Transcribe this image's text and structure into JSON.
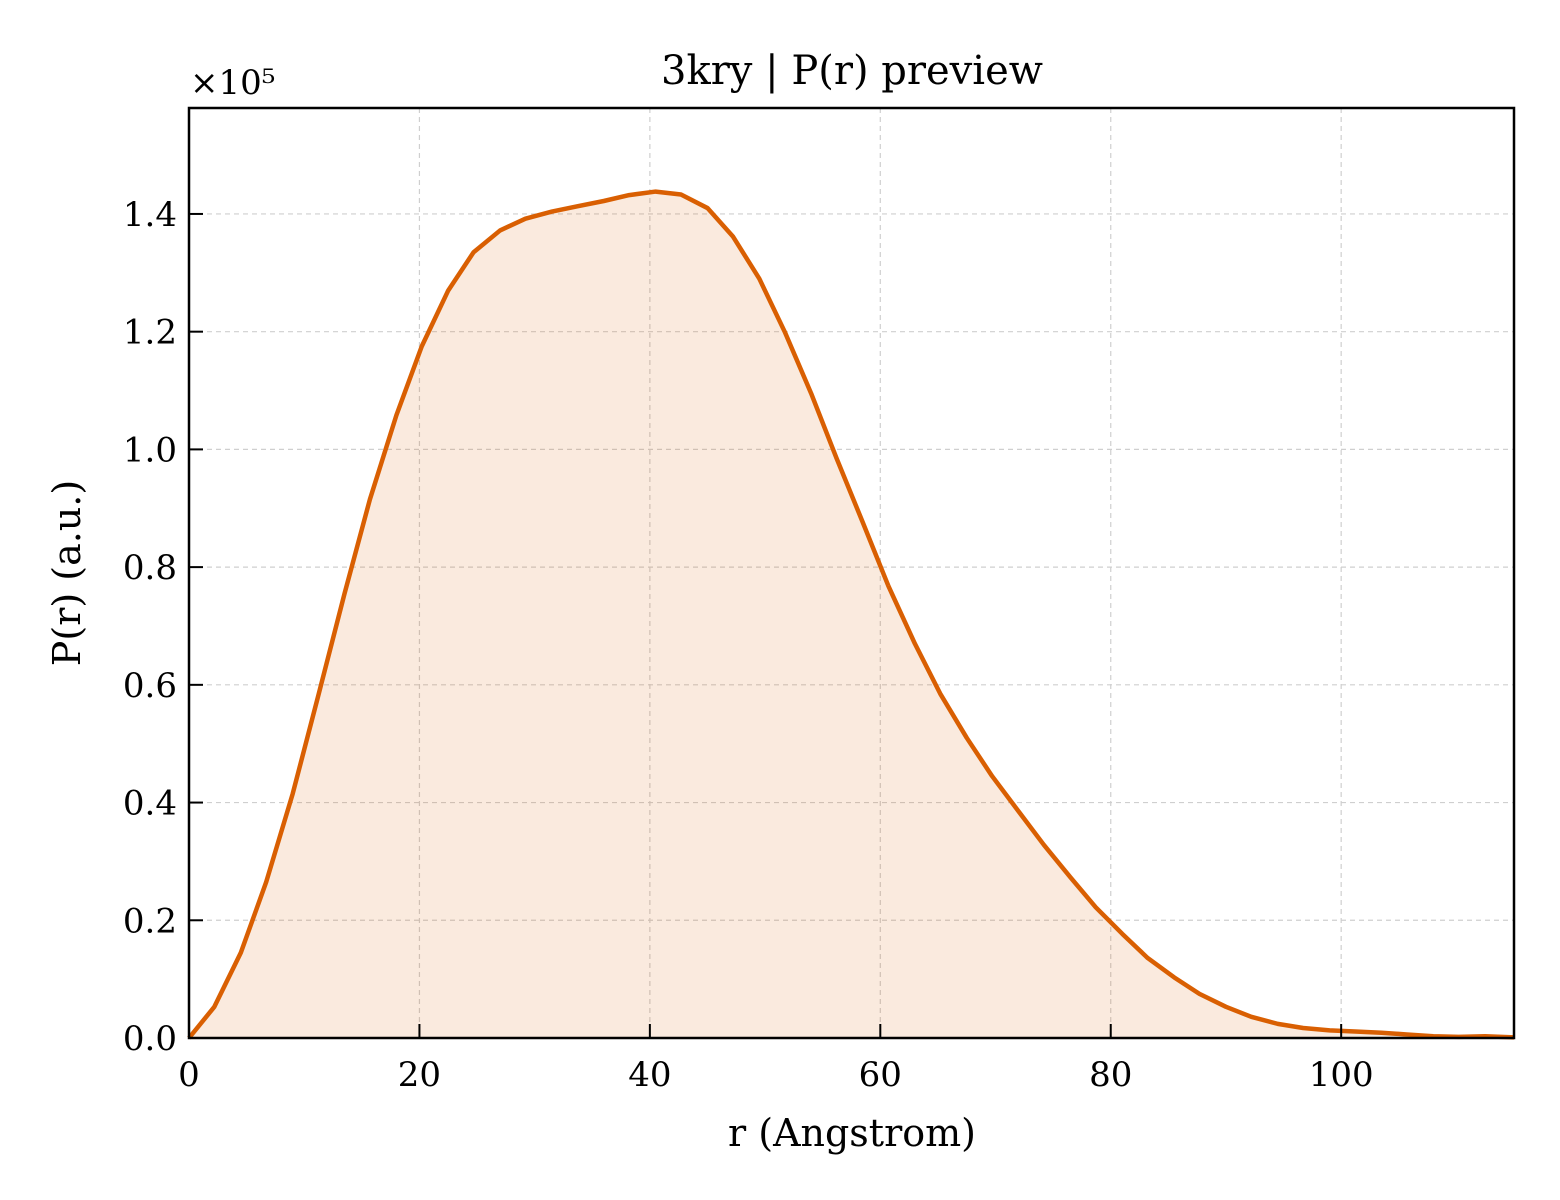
{
  "chart_data": {
    "type": "area",
    "title": "3kry | P(r) preview",
    "xlabel": "r (Angstrom)",
    "ylabel": "P(r) (a.u.)",
    "y_multiplier_label": "×10⁵",
    "y_scale_factor": 100000,
    "xlim": [
      0,
      115
    ],
    "ylim": [
      0,
      158000
    ],
    "xticks": [
      0,
      20,
      40,
      60,
      80,
      100
    ],
    "yticks": [
      0,
      20000,
      40000,
      60000,
      80000,
      100000,
      120000,
      140000
    ],
    "xtick_labels": [
      "0",
      "20",
      "40",
      "60",
      "80",
      "100"
    ],
    "ytick_labels": [
      "0.0",
      "0.2",
      "0.4",
      "0.6",
      "0.8",
      "1.0",
      "1.2",
      "1.4"
    ],
    "grid": true,
    "grid_style": "dashed",
    "line_color": "#d95f02",
    "fill_color": "#d95f02",
    "fill_opacity": 0.13,
    "series": [
      {
        "x": [
          0,
          2.2,
          4.5,
          6.7,
          9.0,
          11.2,
          13.5,
          15.7,
          18.0,
          20.2,
          22.5,
          24.7,
          27.0,
          29.2,
          31.5,
          33.7,
          36.0,
          38.2,
          40.5,
          42.7,
          45.0,
          47.2,
          49.5,
          51.7,
          54.0,
          56.2,
          58.5,
          60.7,
          63.0,
          65.2,
          67.5,
          69.7,
          72.0,
          74.2,
          76.5,
          78.7,
          81.0,
          83.2,
          85.5,
          87.7,
          90.0,
          92.2,
          94.5,
          96.7,
          99.0,
          101.2,
          103.5,
          105.7,
          108.0,
          110.2,
          112.5,
          115.0
        ],
        "y": [
          0,
          5300,
          14500,
          26500,
          41500,
          58000,
          75500,
          91500,
          105800,
          117500,
          127000,
          133500,
          137200,
          139200,
          140400,
          141300,
          142200,
          143200,
          143800,
          143300,
          141000,
          136200,
          129000,
          120000,
          109500,
          98500,
          87500,
          76800,
          67000,
          58500,
          51000,
          44500,
          38500,
          32800,
          27300,
          22200,
          17700,
          13600,
          10300,
          7500,
          5300,
          3600,
          2400,
          1700,
          1300,
          1100,
          900,
          600,
          300,
          200,
          300,
          100
        ]
      }
    ]
  }
}
